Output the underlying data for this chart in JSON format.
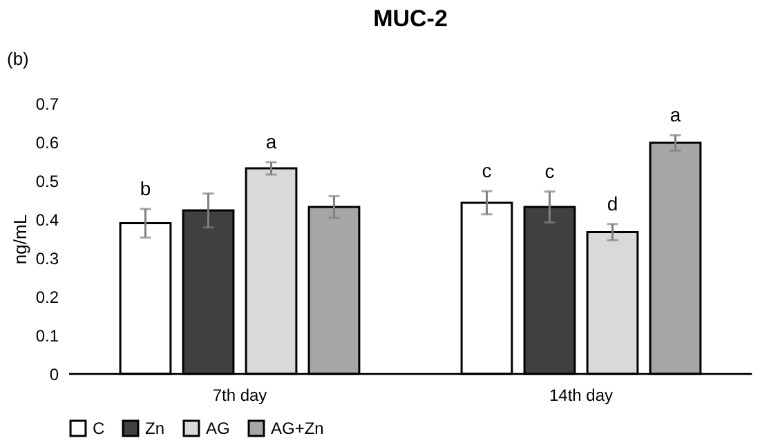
{
  "chart_data": {
    "type": "bar",
    "title": "MUC-2",
    "ylabel": "ng/mL",
    "annotations": [
      "(b)"
    ],
    "categories": [
      "7th day",
      "14th day"
    ],
    "series": [
      {
        "name": "C",
        "color": "#ffffff",
        "values": [
          0.39,
          0.443
        ],
        "errors": [
          0.037,
          0.03
        ],
        "value_labels": [
          "b",
          "c"
        ]
      },
      {
        "name": "Zn",
        "color": "#404040",
        "values": [
          0.423,
          0.432
        ],
        "errors": [
          0.044,
          0.04
        ],
        "value_labels": [
          null,
          "c"
        ]
      },
      {
        "name": "AG",
        "color": "#d9d9d9",
        "values": [
          0.532,
          0.367
        ],
        "errors": [
          0.016,
          0.021
        ],
        "value_labels": [
          "a",
          "d"
        ]
      },
      {
        "name": "AG+Zn",
        "color": "#a6a6a6",
        "values": [
          0.432,
          0.598
        ],
        "errors": [
          0.028,
          0.02
        ],
        "value_labels": [
          null,
          "a"
        ]
      }
    ],
    "ylim": [
      0,
      0.7
    ],
    "yticks": [
      0,
      0.1,
      0.2,
      0.3,
      0.4,
      0.5,
      0.6,
      0.7
    ],
    "grid": false,
    "legend": "bottom"
  }
}
